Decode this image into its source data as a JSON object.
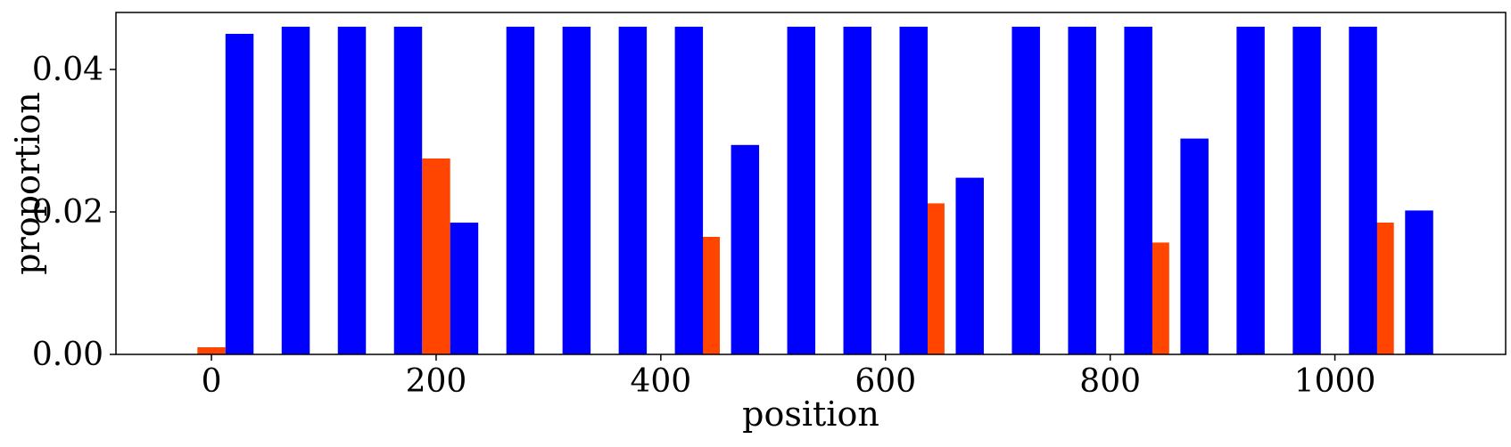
{
  "chart_data": {
    "type": "bar",
    "title": "",
    "xlabel": "position",
    "ylabel": "proportion",
    "xlim": [
      -85,
      1152
    ],
    "ylim": [
      0,
      0.048
    ],
    "xticks": [
      0,
      200,
      400,
      600,
      800,
      1000
    ],
    "xtick_labels": [
      "0",
      "200",
      "400",
      "600",
      "800",
      "1000"
    ],
    "yticks": [
      0.0,
      0.02,
      0.04
    ],
    "ytick_labels": [
      "0.00",
      "0.02",
      "0.04"
    ],
    "grid": false,
    "bar_width": 25,
    "series": [
      {
        "color": "#ff4500",
        "x": [
          0,
          200,
          440,
          640,
          840,
          1040
        ],
        "values": [
          0.001,
          0.0275,
          0.0165,
          0.0212,
          0.0157,
          0.0185
        ]
      },
      {
        "color": "#0000ff",
        "x": [
          25,
          75,
          125,
          175,
          225,
          275,
          325,
          375,
          425,
          475,
          525,
          575,
          625,
          675,
          725,
          775,
          825,
          875,
          925,
          975,
          1025,
          1075
        ],
        "values": [
          0.045,
          0.046,
          0.046,
          0.046,
          0.0185,
          0.046,
          0.046,
          0.046,
          0.046,
          0.0294,
          0.046,
          0.046,
          0.046,
          0.0248,
          0.046,
          0.046,
          0.046,
          0.0303,
          0.046,
          0.046,
          0.046,
          0.0202
        ]
      }
    ]
  }
}
